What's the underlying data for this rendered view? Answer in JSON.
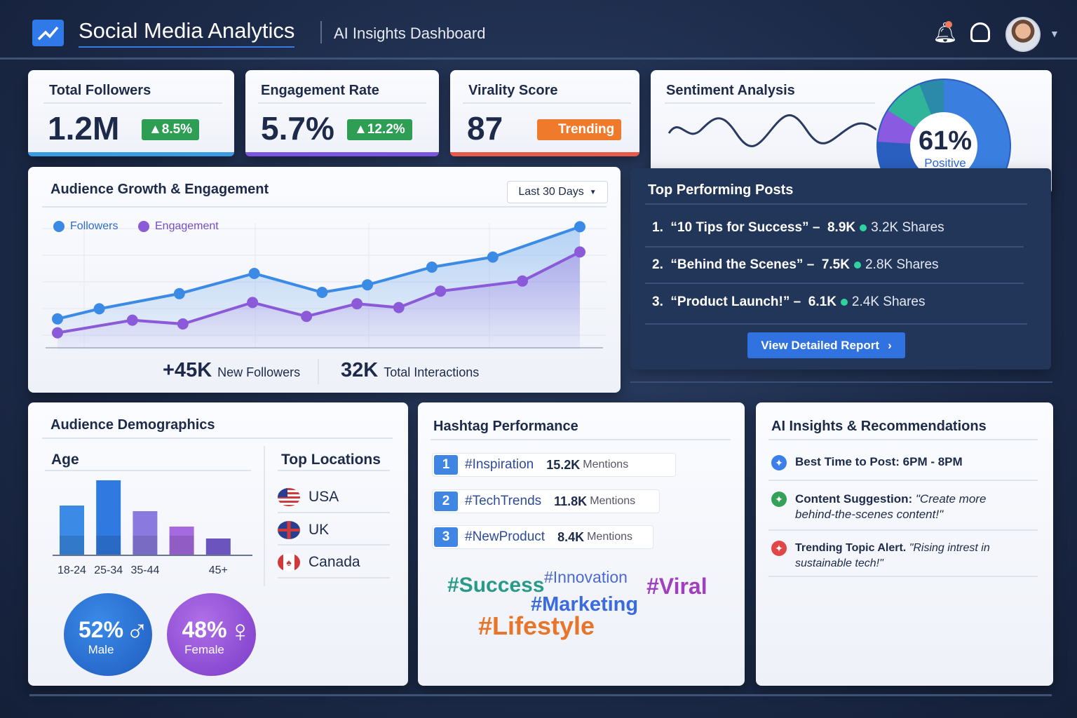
{
  "header": {
    "app_title": "Social Media Analytics",
    "subtitle": "AI Insights Dashboard",
    "icons": [
      "trend-logo-icon",
      "notification-bell-icon",
      "bell-icon",
      "user-avatar",
      "chevron-down-icon"
    ]
  },
  "kpis": [
    {
      "label": "Total Followers",
      "value": "1.2M",
      "badge": "▲8.5%",
      "badge_color": "#2f9e55",
      "bar_color": "#3b9be0"
    },
    {
      "label": "Engagement Rate",
      "value": "5.7%",
      "badge": "▲12.2%",
      "badge_color": "#2f9e55",
      "bar_color": "#7a55e0"
    },
    {
      "label": "Virality Score",
      "value": "87",
      "badge": "Trending",
      "badge_color": "#f07a2c",
      "bar_color": "#e85a48"
    }
  ],
  "sentiment": {
    "title": "Sentiment Analysis",
    "percent": "61%",
    "label": "Positive",
    "segments": [
      {
        "value": 61,
        "color": "#3a7fe0"
      },
      {
        "value": 15,
        "color": "#2a5fc0"
      },
      {
        "value": 8,
        "color": "#8a5ae0"
      },
      {
        "value": 10,
        "color": "#30b59a"
      },
      {
        "value": 6,
        "color": "#2a8aa8"
      }
    ]
  },
  "growth": {
    "title": "Audience Growth & Engagement",
    "range_select": "Last 30 Days",
    "stats": [
      {
        "value": "+45K",
        "label": "New Followers"
      },
      {
        "value": "32K",
        "label": "Total Interactions"
      }
    ]
  },
  "chart_data": {
    "type": "area",
    "legend": "top-left",
    "grid": true,
    "series": [
      {
        "name": "Followers",
        "color": "#3a8ae6",
        "x": [
          0,
          2.4,
          7,
          11.3,
          15.2,
          17.8,
          21.5,
          25,
          30
        ],
        "y": [
          24,
          32,
          44,
          60,
          45,
          51,
          65,
          73,
          97
        ]
      },
      {
        "name": "Engagement",
        "color": "#8a5ad8",
        "x": [
          0,
          4.3,
          7.2,
          11.2,
          14.3,
          17.2,
          19.6,
          22,
          26.7,
          30
        ],
        "y": [
          13,
          23,
          20,
          37,
          26,
          36,
          33,
          46,
          54,
          77
        ]
      }
    ],
    "xlim": [
      0,
      30
    ],
    "ylim": [
      0,
      100
    ]
  },
  "top_posts": {
    "title": "Top Performing Posts",
    "items": [
      {
        "rank": "1.",
        "title": "“10 Tips for Success” –",
        "views": "8.9K",
        "shares": "3.2K Shares"
      },
      {
        "rank": "2.",
        "title": "“Behind the Scenes” –",
        "views": "7.5K",
        "shares": "2.8K Shares"
      },
      {
        "rank": "3.",
        "title": "“Product Launch!” –",
        "views": "6.1K",
        "shares": "2.4K Shares"
      }
    ],
    "button": "View Detailed Report"
  },
  "demographics": {
    "title": "Audience Demographics",
    "age_title": "Age",
    "age_chart": {
      "type": "bar",
      "categories": [
        "18-24",
        "25-34",
        "35-44",
        "",
        "45+"
      ],
      "values": [
        71,
        107,
        63,
        41,
        24
      ],
      "colors": [
        "#3a8ae6",
        "#2f7ae0",
        "#8a7ae0",
        "#a66ae0",
        "#7a60d8"
      ]
    },
    "locations_title": "Top Locations",
    "locations": [
      "USA",
      "UK",
      "Canada"
    ],
    "gender": [
      {
        "percent": "52%",
        "label": "Male",
        "color": "#2f72d8"
      },
      {
        "percent": "48%",
        "label": "Female",
        "color": "#9a55d8"
      }
    ]
  },
  "hashtags": {
    "title": "Hashtag Performance",
    "items": [
      {
        "rank": "1",
        "tag": "#Inspiration",
        "count": "15.2K",
        "unit": "Mentions"
      },
      {
        "rank": "2",
        "tag": "#TechTrends",
        "count": "11.8K",
        "unit": "Mentions"
      },
      {
        "rank": "3",
        "tag": "#NewProduct",
        "count": "8.4K",
        "unit": "Mentions"
      }
    ],
    "cloud": [
      {
        "tag": "#Success",
        "color": "#2a9a88"
      },
      {
        "tag": "#Innovation",
        "color": "#4a6ad0"
      },
      {
        "tag": "#Viral",
        "color": "#a040c0"
      },
      {
        "tag": "#Marketing",
        "color": "#3a6ae0"
      },
      {
        "tag": "#Lifestyle",
        "color": "#e8762a"
      }
    ]
  },
  "insights": {
    "title": "AI Insights & Recommendations",
    "items": [
      {
        "bold": "Best Time to Post: 6PM - 8PM",
        "italic": "",
        "color": "#3a80e8"
      },
      {
        "bold": "Content Suggestion:",
        "italic": "\"Create more behind-the-scenes content!\"",
        "color": "#35a058"
      },
      {
        "bold": "Trending Topic Alert.",
        "italic": "\"Rising intrest in sustainable tech!\"",
        "color": "#e04848"
      }
    ]
  }
}
